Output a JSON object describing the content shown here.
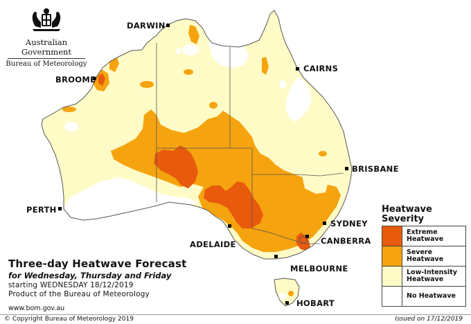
{
  "logo": {
    "government": "Australian Government",
    "bureau": "Bureau of Meteorology"
  },
  "title": {
    "main": "Three-day Heatwave Forecast",
    "subtitle": "for Wednesday, Thursday and Friday",
    "starting": "starting WEDNESDAY 18/12/2019",
    "product": "Product of the Bureau of Meteorology"
  },
  "website": "www.bom.gov.au",
  "footer": {
    "copyright": "© Copyright Bureau of Meteorology 2019",
    "issued": "Issued on 17/12/2019"
  },
  "cities": {
    "darwin": "DARWIN",
    "cairns": "CAIRNS",
    "broome": "BROOME",
    "brisbane": "BRISBANE",
    "perth": "PERTH",
    "sydney": "SYDNEY",
    "adelaide": "ADELAIDE",
    "canberra": "CANBERRA",
    "melbourne": "MELBOURNE",
    "hobart": "HOBART"
  },
  "legend": {
    "title_line1": "Heatwave",
    "title_line2": "Severity",
    "items": [
      {
        "label_line1": "Extreme",
        "label_line2": "Heatwave",
        "color": "#e85a0c"
      },
      {
        "label_line1": "Severe",
        "label_line2": "Heatwave",
        "color": "#f5a30f"
      },
      {
        "label_line1": "Low-Intensity",
        "label_line2": "Heatwave",
        "color": "#fffbc6"
      },
      {
        "label_line1": "No Heatwave",
        "label_line2": "",
        "color": "#ffffff"
      }
    ]
  },
  "colors": {
    "extreme": "#e85a0c",
    "severe": "#f5a30f",
    "low_intensity": "#fffbc6",
    "none": "#ffffff",
    "border": "#555555"
  }
}
